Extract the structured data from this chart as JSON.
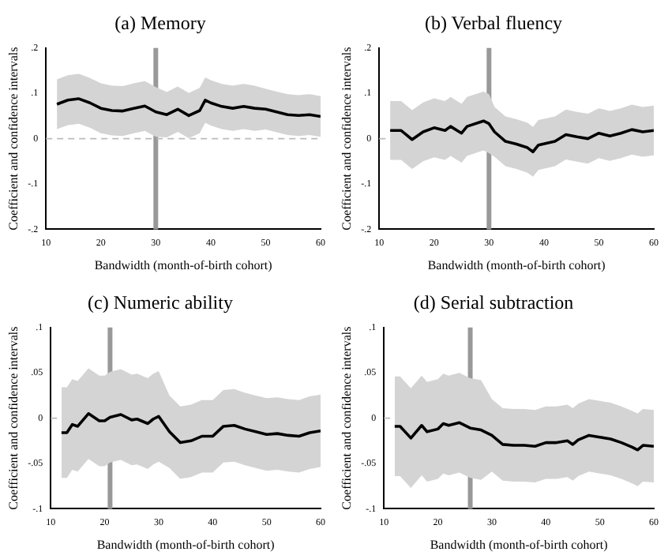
{
  "chart_data": [
    {
      "type": "line",
      "title": "(a) Memory",
      "xlabel": "Bandwidth (month-of-birth cohort)",
      "ylabel": "Coefficient and confidence intervals",
      "xlim": [
        10,
        60
      ],
      "xticks": [
        10,
        20,
        30,
        40,
        50,
        60
      ],
      "ylim": [
        -0.2,
        0.2
      ],
      "yticks": [
        {
          "value": -0.2,
          "label": "-.2"
        },
        {
          "value": -0.1,
          "label": "-.1"
        },
        {
          "value": 0,
          "label": "0"
        },
        {
          "value": 0.1,
          "label": ".1"
        },
        {
          "value": 0.2,
          "label": ".2"
        }
      ],
      "grid": false,
      "legend": false,
      "ref_lines": [
        {
          "axis": "x",
          "value": 30,
          "color": "#999999",
          "line_style": "solid"
        },
        {
          "axis": "y",
          "value": 0,
          "color": "#bbbbbb",
          "line_style": "dashed"
        }
      ],
      "series": [
        {
          "color": "#000000",
          "x": [
            12,
            14,
            16,
            18,
            20,
            22,
            24,
            26,
            28,
            30,
            32,
            34,
            36,
            38,
            39,
            40,
            42,
            44,
            46,
            48,
            50,
            52,
            54,
            56,
            58,
            60
          ],
          "values": [
            0.076,
            0.085,
            0.088,
            0.079,
            0.067,
            0.062,
            0.061,
            0.067,
            0.072,
            0.059,
            0.053,
            0.065,
            0.051,
            0.062,
            0.085,
            0.079,
            0.071,
            0.067,
            0.071,
            0.067,
            0.065,
            0.059,
            0.053,
            0.051,
            0.053,
            0.049
          ],
          "upper": [
            0.131,
            0.14,
            0.143,
            0.134,
            0.122,
            0.117,
            0.116,
            0.122,
            0.127,
            0.114,
            0.103,
            0.115,
            0.101,
            0.112,
            0.135,
            0.129,
            0.121,
            0.117,
            0.121,
            0.117,
            0.11,
            0.104,
            0.098,
            0.096,
            0.098,
            0.094
          ],
          "lower": [
            0.021,
            0.03,
            0.033,
            0.024,
            0.012,
            0.007,
            0.006,
            0.012,
            0.017,
            0.004,
            0.003,
            0.015,
            0.001,
            0.012,
            0.035,
            0.029,
            0.021,
            0.017,
            0.021,
            0.017,
            0.02,
            0.014,
            0.008,
            0.006,
            0.008,
            0.004
          ]
        }
      ]
    },
    {
      "type": "line",
      "title": "(b) Verbal fluency",
      "xlabel": "Bandwidth (month-of-birth cohort)",
      "ylabel": "Coefficient and confidence intervals",
      "xlim": [
        10,
        60
      ],
      "xticks": [
        10,
        20,
        30,
        40,
        50,
        60
      ],
      "ylim": [
        -0.2,
        0.2
      ],
      "yticks": [
        {
          "value": -0.2,
          "label": "-.2"
        },
        {
          "value": -0.1,
          "label": "-.1"
        },
        {
          "value": 0,
          "label": "0"
        },
        {
          "value": 0.1,
          "label": ".1"
        },
        {
          "value": 0.2,
          "label": ".2"
        }
      ],
      "grid": false,
      "legend": false,
      "ref_lines": [
        {
          "axis": "x",
          "value": 30,
          "color": "#999999",
          "line_style": "solid"
        },
        {
          "axis": "y",
          "value": 0,
          "color": "#bbbbbb",
          "line_style": "dashed"
        }
      ],
      "series": [
        {
          "color": "#000000",
          "x": [
            12,
            14,
            16,
            18,
            20,
            22,
            23,
            25,
            26,
            28,
            29,
            30,
            31,
            33,
            35,
            37,
            38,
            39,
            42,
            44,
            46,
            48,
            50,
            52,
            54,
            56,
            58,
            60
          ],
          "values": [
            0.018,
            0.018,
            -0.002,
            0.015,
            0.024,
            0.018,
            0.027,
            0.012,
            0.027,
            0.035,
            0.039,
            0.033,
            0.015,
            -0.006,
            -0.012,
            -0.02,
            -0.029,
            -0.014,
            -0.006,
            0.009,
            0.004,
            0,
            0.012,
            0.006,
            0.012,
            0.02,
            0.015,
            0.018
          ],
          "upper": [
            0.083,
            0.083,
            0.063,
            0.08,
            0.089,
            0.083,
            0.092,
            0.077,
            0.092,
            0.1,
            0.104,
            0.098,
            0.07,
            0.049,
            0.043,
            0.035,
            0.026,
            0.041,
            0.049,
            0.064,
            0.059,
            0.055,
            0.067,
            0.061,
            0.067,
            0.075,
            0.07,
            0.073
          ],
          "lower": [
            -0.047,
            -0.047,
            -0.067,
            -0.05,
            -0.041,
            -0.047,
            -0.038,
            -0.053,
            -0.038,
            -0.03,
            -0.026,
            -0.032,
            -0.04,
            -0.061,
            -0.067,
            -0.075,
            -0.084,
            -0.069,
            -0.061,
            -0.046,
            -0.051,
            -0.055,
            -0.043,
            -0.049,
            -0.043,
            -0.035,
            -0.04,
            -0.037
          ]
        }
      ]
    },
    {
      "type": "line",
      "title": "(c) Numeric ability",
      "xlabel": "Bandwidth (month-of-birth cohort)",
      "ylabel": "Coefficient and confidence intervals",
      "xlim": [
        10,
        60
      ],
      "xticks": [
        10,
        20,
        30,
        40,
        50,
        60
      ],
      "ylim": [
        -0.1,
        0.1
      ],
      "yticks": [
        {
          "value": -0.1,
          "label": "-.1"
        },
        {
          "value": -0.05,
          "label": "-.05"
        },
        {
          "value": 0,
          "label": "0"
        },
        {
          "value": 0.05,
          "label": ".05"
        },
        {
          "value": 0.1,
          "label": ".1"
        }
      ],
      "grid": false,
      "legend": false,
      "ref_lines": [
        {
          "axis": "x",
          "value": 21,
          "color": "#999999",
          "line_style": "solid"
        },
        {
          "axis": "y",
          "value": 0,
          "color": "#bbbbbb",
          "line_style": "dashed"
        }
      ],
      "series": [
        {
          "color": "#000000",
          "x": [
            12,
            13,
            14,
            15,
            17,
            19,
            20,
            21,
            23,
            25,
            26,
            28,
            29,
            30,
            32,
            34,
            36,
            38,
            40,
            42,
            44,
            46,
            48,
            50,
            52,
            54,
            56,
            58,
            60
          ],
          "values": [
            -0.016,
            -0.016,
            -0.007,
            -0.009,
            0.005,
            -0.003,
            -0.003,
            0.001,
            0.004,
            -0.002,
            -0.001,
            -0.006,
            -0.001,
            0.002,
            -0.015,
            -0.027,
            -0.025,
            -0.02,
            -0.02,
            -0.009,
            -0.008,
            -0.012,
            -0.015,
            -0.018,
            -0.017,
            -0.019,
            -0.02,
            -0.016,
            -0.014
          ],
          "upper": [
            0.034,
            0.034,
            0.043,
            0.041,
            0.055,
            0.047,
            0.047,
            0.051,
            0.054,
            0.048,
            0.049,
            0.044,
            0.049,
            0.052,
            0.025,
            0.013,
            0.015,
            0.02,
            0.02,
            0.031,
            0.032,
            0.028,
            0.025,
            0.022,
            0.023,
            0.021,
            0.02,
            0.024,
            0.026
          ],
          "lower": [
            -0.066,
            -0.066,
            -0.057,
            -0.059,
            -0.045,
            -0.053,
            -0.053,
            -0.049,
            -0.046,
            -0.052,
            -0.051,
            -0.056,
            -0.051,
            -0.048,
            -0.055,
            -0.067,
            -0.065,
            -0.06,
            -0.06,
            -0.049,
            -0.048,
            -0.052,
            -0.055,
            -0.058,
            -0.057,
            -0.059,
            -0.06,
            -0.056,
            -0.054
          ]
        }
      ]
    },
    {
      "type": "line",
      "title": "(d) Serial subtraction",
      "xlabel": "Bandwidth (month-of-birth cohort)",
      "ylabel": "Coefficient and confidence intervals",
      "xlim": [
        10,
        60
      ],
      "xticks": [
        10,
        20,
        30,
        40,
        50,
        60
      ],
      "ylim": [
        -0.1,
        0.1
      ],
      "yticks": [
        {
          "value": -0.1,
          "label": "-.1"
        },
        {
          "value": -0.05,
          "label": "-.05"
        },
        {
          "value": 0,
          "label": "0"
        },
        {
          "value": 0.05,
          "label": ".05"
        },
        {
          "value": 0.1,
          "label": ".1"
        }
      ],
      "grid": false,
      "legend": false,
      "ref_lines": [
        {
          "axis": "x",
          "value": 26,
          "color": "#999999",
          "line_style": "solid"
        },
        {
          "axis": "y",
          "value": 0,
          "color": "#bbbbbb",
          "line_style": "dashed"
        }
      ],
      "series": [
        {
          "color": "#000000",
          "x": [
            12,
            13,
            15,
            17,
            18,
            20,
            21,
            22,
            24,
            26,
            28,
            30,
            32,
            34,
            36,
            38,
            40,
            42,
            44,
            45,
            46,
            48,
            50,
            52,
            54,
            56,
            57,
            58,
            60
          ],
          "values": [
            -0.009,
            -0.009,
            -0.022,
            -0.008,
            -0.015,
            -0.012,
            -0.006,
            -0.008,
            -0.005,
            -0.011,
            -0.013,
            -0.019,
            -0.029,
            -0.03,
            -0.03,
            -0.031,
            -0.027,
            -0.027,
            -0.025,
            -0.029,
            -0.024,
            -0.019,
            -0.021,
            -0.023,
            -0.027,
            -0.032,
            -0.035,
            -0.03,
            -0.031
          ],
          "upper": [
            0.046,
            0.046,
            0.033,
            0.047,
            0.04,
            0.043,
            0.049,
            0.047,
            0.05,
            0.044,
            0.042,
            0.021,
            0.011,
            0.01,
            0.01,
            0.009,
            0.013,
            0.013,
            0.015,
            0.011,
            0.016,
            0.021,
            0.019,
            0.017,
            0.013,
            0.008,
            0.005,
            0.01,
            0.009
          ],
          "lower": [
            -0.064,
            -0.064,
            -0.077,
            -0.063,
            -0.07,
            -0.067,
            -0.061,
            -0.063,
            -0.06,
            -0.066,
            -0.068,
            -0.059,
            -0.069,
            -0.07,
            -0.07,
            -0.071,
            -0.067,
            -0.067,
            -0.065,
            -0.069,
            -0.064,
            -0.059,
            -0.061,
            -0.063,
            -0.067,
            -0.072,
            -0.075,
            -0.07,
            -0.071
          ]
        }
      ]
    }
  ]
}
